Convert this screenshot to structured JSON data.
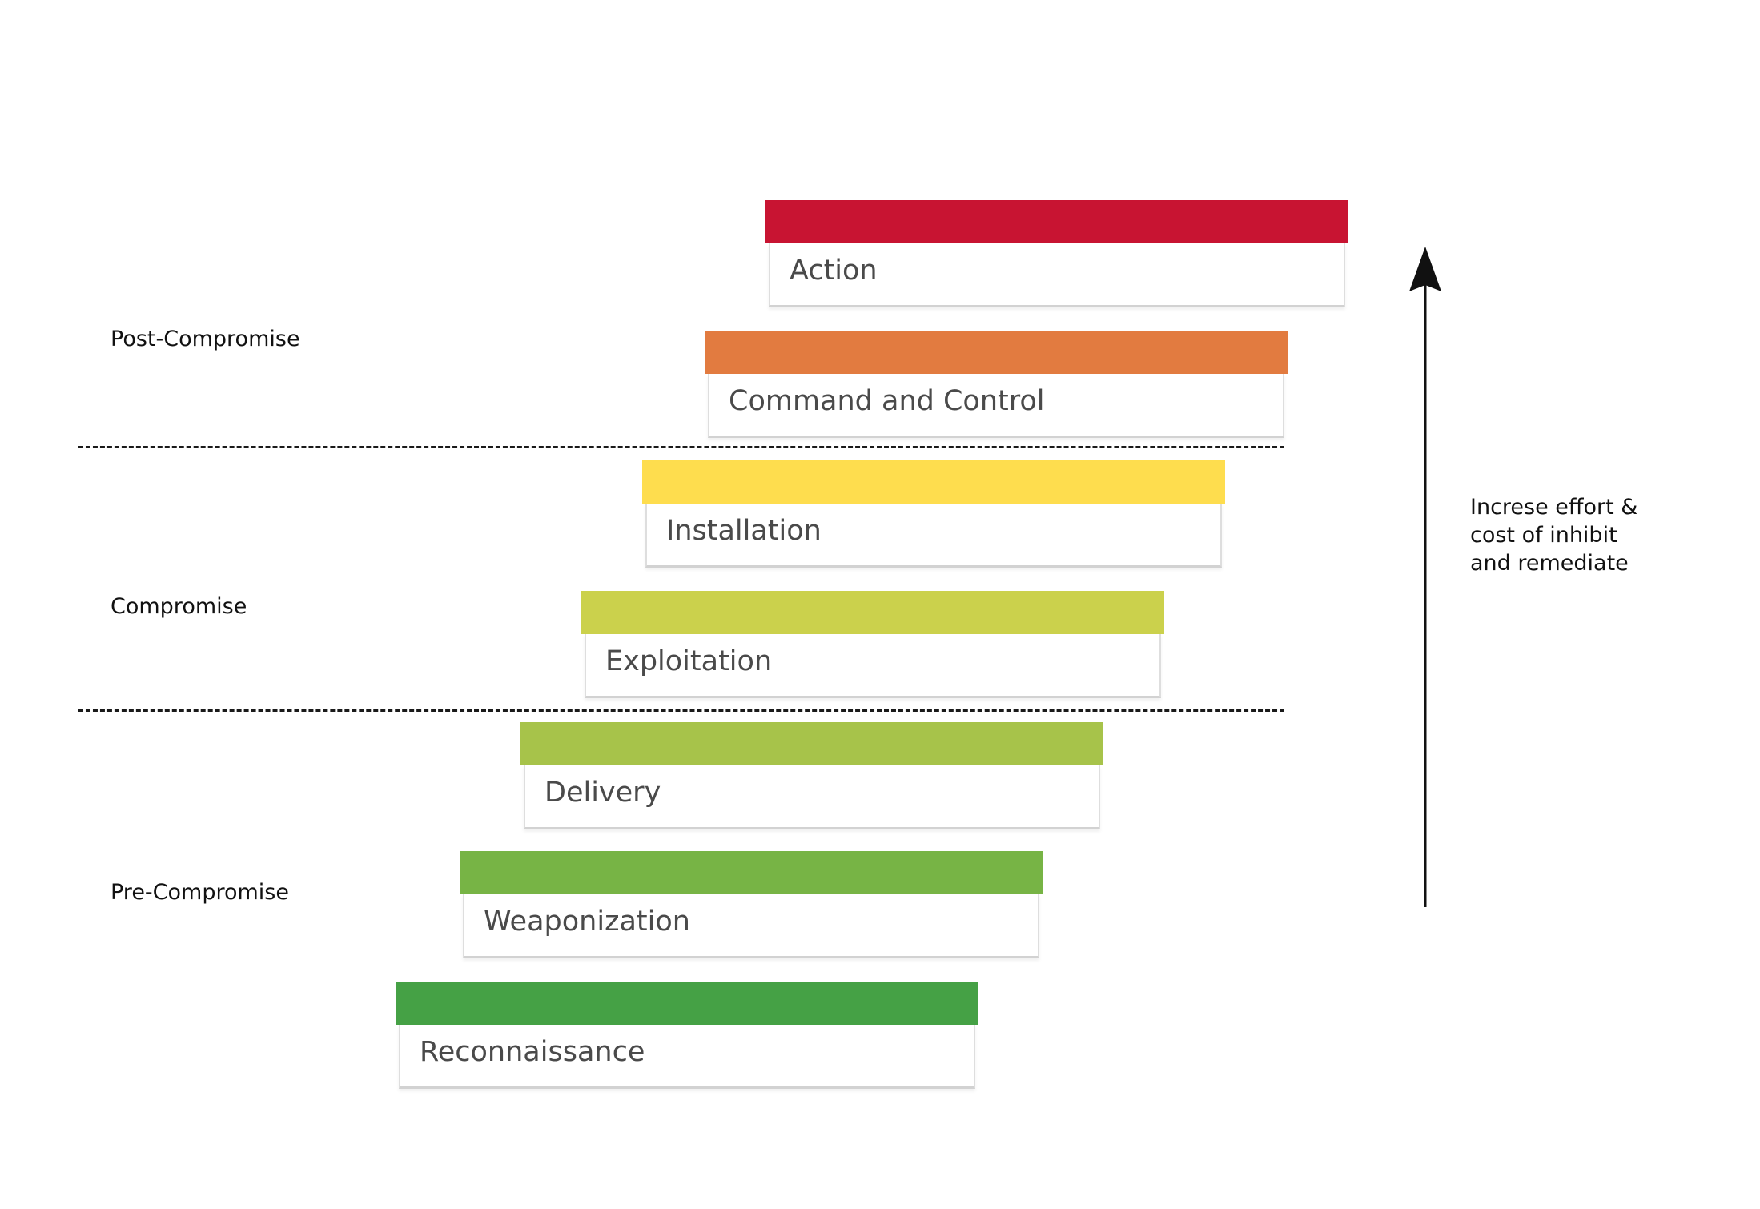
{
  "phases": [
    {
      "label": "Post-Compromise"
    },
    {
      "label": "Compromise"
    },
    {
      "label": "Pre-Compromise"
    }
  ],
  "stages": [
    {
      "label": "Action",
      "color": "#c81432"
    },
    {
      "label": "Command and Control",
      "color": "#e27b40"
    },
    {
      "label": "Installation",
      "color": "#fedd4e"
    },
    {
      "label": "Exploitation",
      "color": "#cbd14c"
    },
    {
      "label": "Delivery",
      "color": "#a7c34a"
    },
    {
      "label": "Weaponization",
      "color": "#77b445"
    },
    {
      "label": "Reconnaissance",
      "color": "#45a145"
    }
  ],
  "effort_note": {
    "lines": [
      "Increse effort &",
      "cost of inhibit",
      "and remediate"
    ]
  },
  "arrow": {
    "icon": "up-arrow-icon",
    "color": "#111111"
  }
}
